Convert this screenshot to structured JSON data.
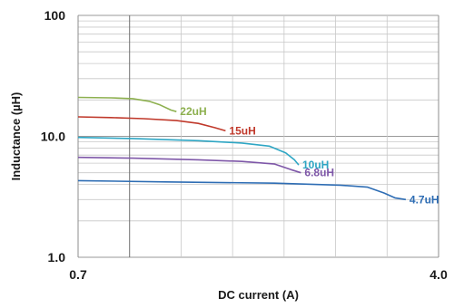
{
  "chart_data": {
    "type": "line",
    "title": "",
    "xlabel": "DC current (A)",
    "ylabel": "Inductance (µH)",
    "x_scale": "linear",
    "y_scale": "log",
    "xlim": [
      0.7,
      4.0
    ],
    "ylim": [
      1.0,
      100
    ],
    "x_tick_labels": [
      {
        "value": 0.7,
        "label": "0.7"
      },
      {
        "value": 4.0,
        "label": "4.0"
      }
    ],
    "y_tick_labels": [
      {
        "value": 1.0,
        "label": "1.0"
      },
      {
        "value": 10.0,
        "label": "10.0"
      },
      {
        "value": 100,
        "label": "100"
      }
    ],
    "grid": true,
    "legend": "inline labels at curve ends",
    "series": [
      {
        "name": "22uH",
        "color": "#8DB04F",
        "points": [
          [
            0.7,
            21.0
          ],
          [
            1.0,
            20.8
          ],
          [
            1.2,
            20.5
          ],
          [
            1.35,
            19.5
          ],
          [
            1.45,
            18.2
          ],
          [
            1.55,
            16.5
          ],
          [
            1.6,
            16.0
          ]
        ]
      },
      {
        "name": "15uH",
        "color": "#C0392B",
        "points": [
          [
            0.7,
            14.5
          ],
          [
            1.0,
            14.3
          ],
          [
            1.3,
            14.0
          ],
          [
            1.6,
            13.5
          ],
          [
            1.8,
            12.8
          ],
          [
            1.95,
            11.8
          ],
          [
            2.05,
            11.1
          ]
        ]
      },
      {
        "name": "10uH",
        "color": "#2EA6C4",
        "points": [
          [
            0.7,
            9.8
          ],
          [
            1.2,
            9.6
          ],
          [
            1.8,
            9.2
          ],
          [
            2.2,
            8.8
          ],
          [
            2.45,
            8.3
          ],
          [
            2.6,
            7.3
          ],
          [
            2.68,
            6.4
          ],
          [
            2.72,
            5.8
          ]
        ]
      },
      {
        "name": "6.8uH",
        "color": "#7E57A8",
        "points": [
          [
            0.7,
            6.7
          ],
          [
            1.2,
            6.6
          ],
          [
            1.8,
            6.4
          ],
          [
            2.2,
            6.2
          ],
          [
            2.5,
            5.9
          ],
          [
            2.65,
            5.3
          ],
          [
            2.74,
            5.0
          ]
        ]
      },
      {
        "name": "4.7uH",
        "color": "#2E6DB4",
        "points": [
          [
            0.7,
            4.3
          ],
          [
            1.5,
            4.2
          ],
          [
            2.5,
            4.1
          ],
          [
            3.1,
            3.95
          ],
          [
            3.35,
            3.8
          ],
          [
            3.5,
            3.4
          ],
          [
            3.6,
            3.1
          ],
          [
            3.7,
            3.0
          ]
        ]
      }
    ]
  }
}
